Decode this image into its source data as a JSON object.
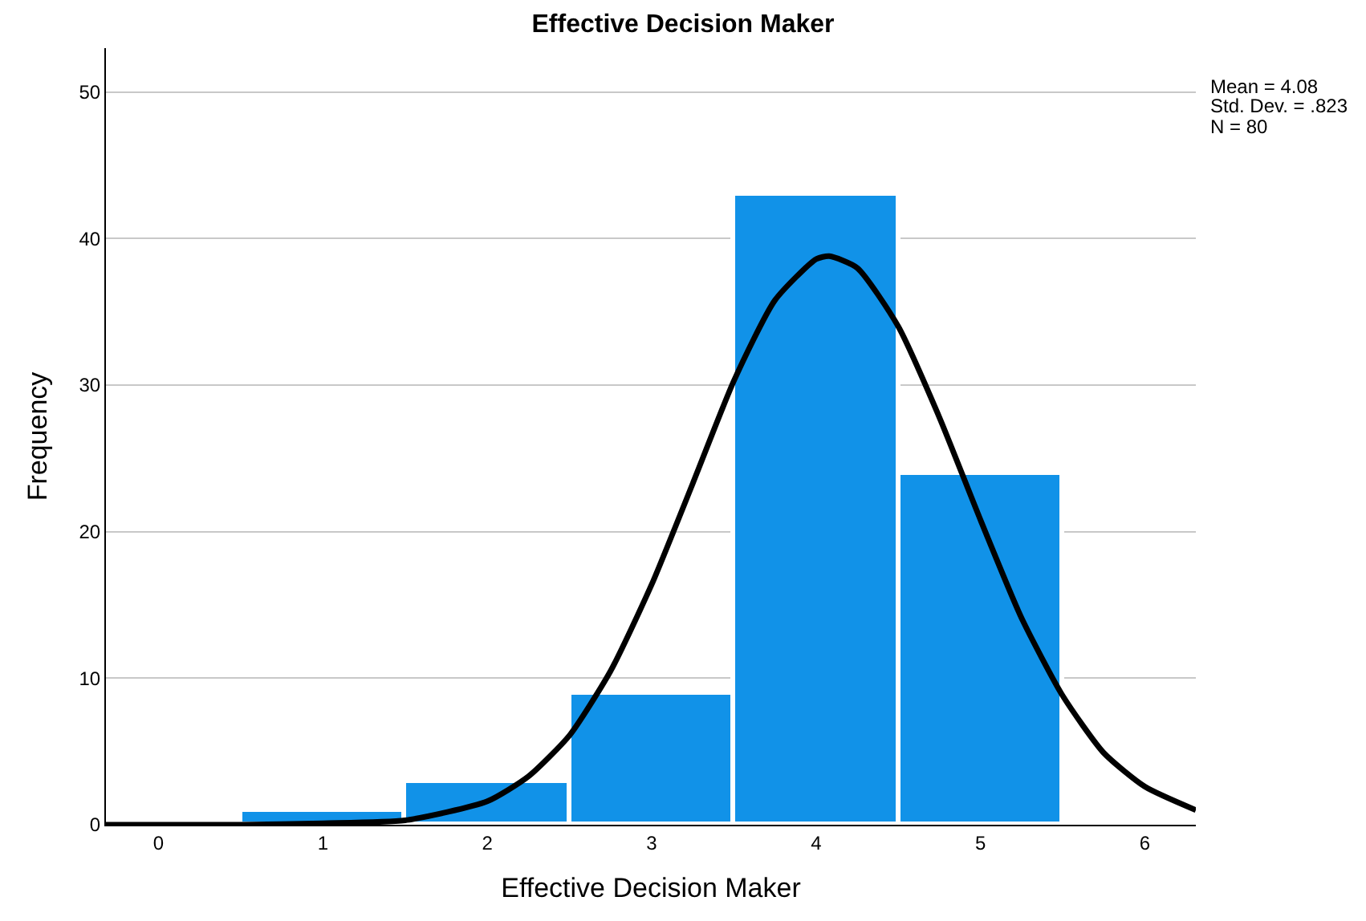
{
  "chart_data": {
    "type": "histogram",
    "title": "Effective Decision Maker",
    "xlabel": "Effective Decision Maker",
    "ylabel": "Frequency",
    "bins": [
      0.5,
      1.5,
      2.5,
      3.5,
      4.5,
      5.5
    ],
    "values": [
      1,
      3,
      9,
      43,
      24
    ],
    "color": "#1192e8",
    "series": [
      {
        "type": "line",
        "color": "#000000",
        "x": [
          -0.32,
          0.5,
          1,
          1.5,
          2,
          2.25,
          2.5,
          2.75,
          3,
          3.25,
          3.5,
          3.75,
          4,
          4.08,
          4.25,
          4.5,
          4.75,
          5,
          5.25,
          5.5,
          5.75,
          6,
          6.31
        ],
        "values": [
          0,
          0,
          0.1,
          0.3,
          1.6,
          3.3,
          6.1,
          10.5,
          16.4,
          23.3,
          30.3,
          35.8,
          38.6,
          38.8,
          38.0,
          34.0,
          27.8,
          20.8,
          14.1,
          8.8,
          4.9,
          2.6,
          1.0
        ]
      }
    ],
    "xlim": [
      -0.32,
      6.31
    ],
    "xticks": [
      0,
      1,
      2,
      3,
      4,
      5,
      6
    ],
    "ylim": [
      0,
      53
    ],
    "yticks": [
      0,
      10,
      20,
      30,
      40,
      50
    ],
    "grid": "y",
    "line_style": "solid",
    "marker": "none",
    "annotations": [
      "Mean = 4.08",
      "Std. Dev. = .823",
      "N = 80"
    ]
  }
}
